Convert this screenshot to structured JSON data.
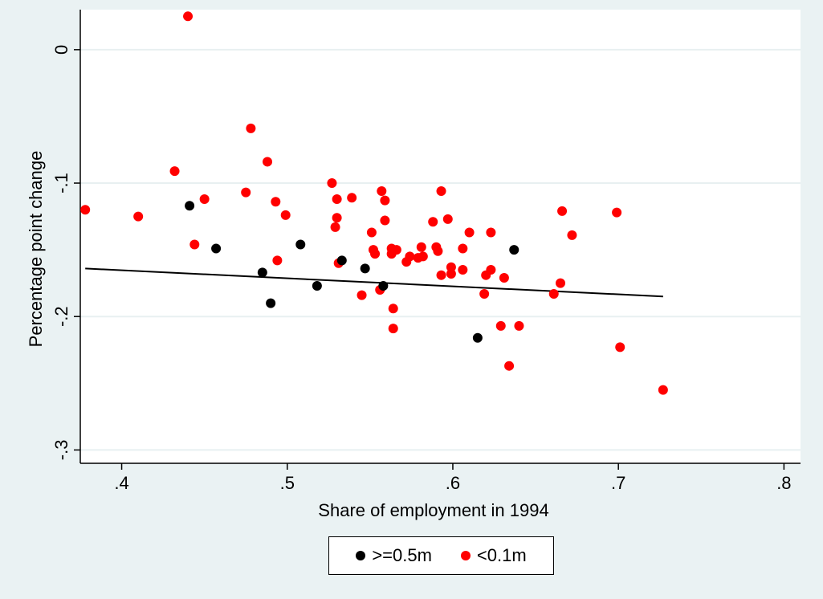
{
  "chart_data": {
    "type": "scatter",
    "title": "",
    "xlabel": "Share of employment in 1994",
    "ylabel": "Percentage point change",
    "xlim": [
      0.375,
      0.81
    ],
    "ylim": [
      -0.31,
      0.03
    ],
    "xticks": [
      0.4,
      0.5,
      0.6,
      0.7,
      0.8
    ],
    "xtick_labels": [
      ".4",
      ".5",
      ".6",
      ".7",
      ".8"
    ],
    "yticks": [
      0,
      -0.1,
      -0.2,
      -0.3
    ],
    "ytick_labels": [
      "0",
      "-.1",
      "-.2",
      "-.3"
    ],
    "grid": "horizontal",
    "legend_position": "bottom",
    "series": [
      {
        "name": ">=0.5m",
        "color": "#000000",
        "points": [
          [
            0.441,
            -0.117
          ],
          [
            0.457,
            -0.149
          ],
          [
            0.485,
            -0.167
          ],
          [
            0.49,
            -0.19
          ],
          [
            0.508,
            -0.146
          ],
          [
            0.518,
            -0.177
          ],
          [
            0.533,
            -0.158
          ],
          [
            0.547,
            -0.164
          ],
          [
            0.558,
            -0.177
          ],
          [
            0.615,
            -0.216
          ],
          [
            0.637,
            -0.15
          ]
        ]
      },
      {
        "name": "<0.1m",
        "color": "#ff0000",
        "points": [
          [
            0.378,
            -0.12
          ],
          [
            0.41,
            -0.125
          ],
          [
            0.432,
            -0.091
          ],
          [
            0.44,
            0.025
          ],
          [
            0.444,
            -0.146
          ],
          [
            0.45,
            -0.112
          ],
          [
            0.475,
            -0.107
          ],
          [
            0.478,
            -0.059
          ],
          [
            0.488,
            -0.084
          ],
          [
            0.493,
            -0.114
          ],
          [
            0.494,
            -0.158
          ],
          [
            0.499,
            -0.124
          ],
          [
            0.527,
            -0.1
          ],
          [
            0.529,
            -0.133
          ],
          [
            0.53,
            -0.112
          ],
          [
            0.53,
            -0.126
          ],
          [
            0.531,
            -0.16
          ],
          [
            0.539,
            -0.111
          ],
          [
            0.545,
            -0.184
          ],
          [
            0.551,
            -0.137
          ],
          [
            0.552,
            -0.15
          ],
          [
            0.553,
            -0.153
          ],
          [
            0.556,
            -0.18
          ],
          [
            0.557,
            -0.106
          ],
          [
            0.559,
            -0.113
          ],
          [
            0.559,
            -0.128
          ],
          [
            0.563,
            -0.149
          ],
          [
            0.563,
            -0.153
          ],
          [
            0.564,
            -0.194
          ],
          [
            0.564,
            -0.209
          ],
          [
            0.566,
            -0.15
          ],
          [
            0.572,
            -0.159
          ],
          [
            0.574,
            -0.155
          ],
          [
            0.579,
            -0.156
          ],
          [
            0.581,
            -0.148
          ],
          [
            0.582,
            -0.155
          ],
          [
            0.588,
            -0.129
          ],
          [
            0.59,
            -0.148
          ],
          [
            0.591,
            -0.151
          ],
          [
            0.593,
            -0.106
          ],
          [
            0.593,
            -0.169
          ],
          [
            0.597,
            -0.127
          ],
          [
            0.599,
            -0.163
          ],
          [
            0.599,
            -0.168
          ],
          [
            0.606,
            -0.165
          ],
          [
            0.606,
            -0.149
          ],
          [
            0.61,
            -0.137
          ],
          [
            0.619,
            -0.183
          ],
          [
            0.62,
            -0.169
          ],
          [
            0.623,
            -0.165
          ],
          [
            0.623,
            -0.137
          ],
          [
            0.629,
            -0.207
          ],
          [
            0.631,
            -0.171
          ],
          [
            0.634,
            -0.237
          ],
          [
            0.64,
            -0.207
          ],
          [
            0.661,
            -0.183
          ],
          [
            0.665,
            -0.175
          ],
          [
            0.666,
            -0.121
          ],
          [
            0.672,
            -0.139
          ],
          [
            0.699,
            -0.122
          ],
          [
            0.701,
            -0.223
          ],
          [
            0.727,
            -0.255
          ]
        ]
      }
    ],
    "fit_line": {
      "color": "#000000",
      "points": [
        [
          0.378,
          -0.164
        ],
        [
          0.727,
          -0.185
        ]
      ]
    }
  },
  "colors": {
    "outer_background": "#eaf2f3",
    "plot_background": "#ffffff",
    "gridline": "#e8f0f1"
  }
}
